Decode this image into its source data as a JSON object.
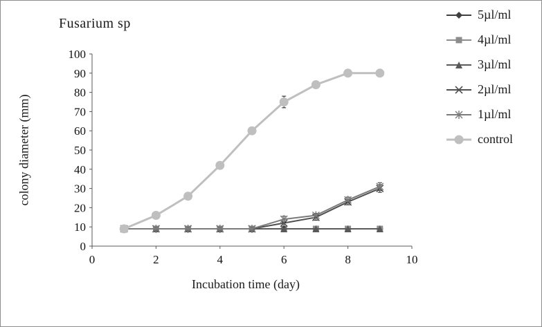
{
  "figure": {
    "title": "Fusarium sp"
  },
  "chart_data": {
    "type": "line",
    "title": "Fusarium sp",
    "xlabel": "Incubation time (day)",
    "ylabel": "colony diameter (mm)",
    "xlim": [
      0,
      10
    ],
    "ylim": [
      0,
      100
    ],
    "x_ticks": [
      0,
      2,
      4,
      6,
      8,
      10
    ],
    "y_ticks": [
      0,
      10,
      20,
      30,
      40,
      50,
      60,
      70,
      80,
      90,
      100
    ],
    "grid": false,
    "legend_position": "right",
    "x": [
      1,
      2,
      3,
      4,
      5,
      6,
      7,
      8,
      9
    ],
    "series": [
      {
        "name": "5µl/ml",
        "marker": "diamond",
        "color": "#3f3f3f",
        "line_width": 2,
        "values": [
          9,
          9,
          9,
          9,
          9,
          9,
          9,
          9,
          9
        ],
        "error": [
          0,
          0,
          0,
          0,
          0,
          0,
          0,
          0,
          0
        ]
      },
      {
        "name": "4µl/ml",
        "marker": "square",
        "color": "#8c8c8c",
        "line_width": 2,
        "values": [
          9,
          9,
          9,
          9,
          9,
          9,
          9,
          9,
          9
        ],
        "error": [
          0,
          0,
          0,
          0,
          0,
          0,
          0,
          0,
          0
        ]
      },
      {
        "name": "3µl/ml",
        "marker": "triangle",
        "color": "#595959",
        "line_width": 2,
        "values": [
          9,
          9,
          9,
          9,
          9,
          9,
          9,
          9,
          9
        ],
        "error": [
          0,
          0,
          0,
          0,
          0,
          0,
          0,
          0,
          0
        ]
      },
      {
        "name": "2µl/ml",
        "marker": "x",
        "color": "#4f4f4f",
        "line_width": 2,
        "values": [
          9,
          9,
          9,
          9,
          9,
          12,
          15,
          23,
          30
        ],
        "error": [
          0,
          0,
          0,
          0,
          0,
          2,
          1.5,
          1.5,
          2
        ]
      },
      {
        "name": "1µl/ml",
        "marker": "asterisk",
        "color": "#7a7a7a",
        "line_width": 2,
        "values": [
          9,
          9,
          9,
          9,
          9,
          14,
          16,
          24,
          31
        ],
        "error": [
          0,
          0,
          0,
          0,
          0,
          1.5,
          1,
          1.5,
          2
        ]
      },
      {
        "name": "control",
        "marker": "circle",
        "color": "#bfbfbf",
        "line_width": 3,
        "values": [
          9,
          16,
          26,
          42,
          60,
          75,
          84,
          90,
          90
        ],
        "error": [
          0,
          0,
          0,
          0,
          0,
          3,
          0,
          0,
          0
        ]
      }
    ]
  }
}
